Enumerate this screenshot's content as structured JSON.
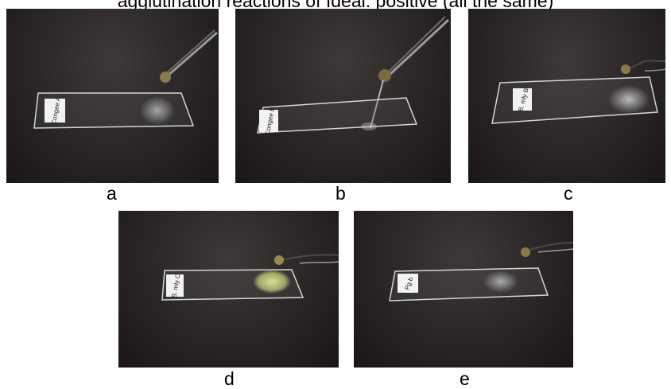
{
  "figure": {
    "top_caption": "agglutination reactions of Ideal: positive (all the same)",
    "panels": [
      {
        "id": "a",
        "label": "a",
        "slide_tag": "Congee A"
      },
      {
        "id": "b",
        "label": "b",
        "slide_tag": "Congee B"
      },
      {
        "id": "c",
        "label": "c",
        "slide_tag": "B. mly B"
      },
      {
        "id": "d",
        "label": "d",
        "slide_tag": "B. mly C"
      },
      {
        "id": "e",
        "label": "e",
        "slide_tag": "Pg b"
      }
    ]
  },
  "colors": {
    "cloth": "#2a2525",
    "glass_edge": "#cfd6d8",
    "reaction_white": "#d8dde0",
    "reaction_yellow": "#d9e59a"
  }
}
